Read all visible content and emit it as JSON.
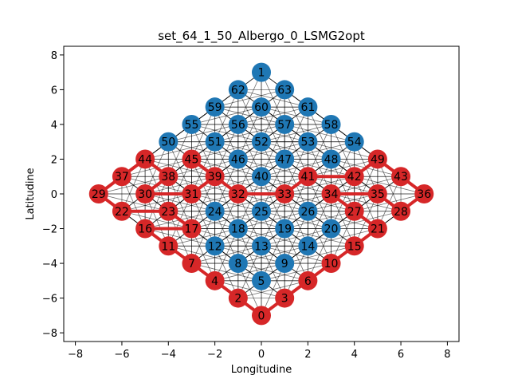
{
  "chart_data": {
    "type": "scatter",
    "title": "set_64_1_50_Albergo_0_LSMG2opt",
    "xlabel": "Longitudine",
    "ylabel": "Latitudine",
    "xlim": [
      -8.5,
      8.5
    ],
    "ylim": [
      -8.5,
      8.5
    ],
    "xticks": [
      -8,
      -6,
      -4,
      -2,
      0,
      2,
      4,
      6,
      8
    ],
    "yticks": [
      -8,
      -6,
      -4,
      -2,
      0,
      2,
      4,
      6,
      8
    ],
    "xtick_labels": [
      "−8",
      "−6",
      "−4",
      "−2",
      "0",
      "2",
      "4",
      "6",
      "8"
    ],
    "ytick_labels": [
      "−8",
      "−6",
      "−4",
      "−2",
      "0",
      "2",
      "4",
      "6",
      "8"
    ],
    "grid": false,
    "colors": {
      "visited": "#d62728",
      "unvisited": "#1f77b4",
      "route": "#d62728",
      "edges": "#000000"
    },
    "nodes": [
      {
        "id": "0",
        "x": 0,
        "y": -7,
        "visited": true
      },
      {
        "id": "1",
        "x": 0,
        "y": 7,
        "visited": false
      },
      {
        "id": "2",
        "x": -1,
        "y": -6,
        "visited": true
      },
      {
        "id": "3",
        "x": 1,
        "y": -6,
        "visited": true
      },
      {
        "id": "4",
        "x": -2,
        "y": -5,
        "visited": true
      },
      {
        "id": "5",
        "x": 0,
        "y": -5,
        "visited": false
      },
      {
        "id": "6",
        "x": 2,
        "y": -5,
        "visited": true
      },
      {
        "id": "7",
        "x": -3,
        "y": -4,
        "visited": true
      },
      {
        "id": "8",
        "x": -1,
        "y": -4,
        "visited": false
      },
      {
        "id": "9",
        "x": 1,
        "y": -4,
        "visited": false
      },
      {
        "id": "10",
        "x": 3,
        "y": -4,
        "visited": true
      },
      {
        "id": "11",
        "x": -4,
        "y": -3,
        "visited": true
      },
      {
        "id": "12",
        "x": -2,
        "y": -3,
        "visited": false
      },
      {
        "id": "13",
        "x": 0,
        "y": -3,
        "visited": false
      },
      {
        "id": "14",
        "x": 2,
        "y": -3,
        "visited": false
      },
      {
        "id": "15",
        "x": 4,
        "y": -3,
        "visited": true
      },
      {
        "id": "16",
        "x": -5,
        "y": -2,
        "visited": true
      },
      {
        "id": "17",
        "x": -3,
        "y": -2,
        "visited": true
      },
      {
        "id": "18",
        "x": -1,
        "y": -2,
        "visited": false
      },
      {
        "id": "19",
        "x": 1,
        "y": -2,
        "visited": false
      },
      {
        "id": "20",
        "x": 3,
        "y": -2,
        "visited": false
      },
      {
        "id": "21",
        "x": 5,
        "y": -2,
        "visited": true
      },
      {
        "id": "22",
        "x": -6,
        "y": -1,
        "visited": true
      },
      {
        "id": "23",
        "x": -4,
        "y": -1,
        "visited": true
      },
      {
        "id": "24",
        "x": -2,
        "y": -1,
        "visited": false
      },
      {
        "id": "25",
        "x": 0,
        "y": -1,
        "visited": false
      },
      {
        "id": "26",
        "x": 2,
        "y": -1,
        "visited": false
      },
      {
        "id": "27",
        "x": 4,
        "y": -1,
        "visited": true
      },
      {
        "id": "28",
        "x": 6,
        "y": -1,
        "visited": true
      },
      {
        "id": "29",
        "x": -7,
        "y": 0,
        "visited": true
      },
      {
        "id": "30",
        "x": -5,
        "y": 0,
        "visited": true
      },
      {
        "id": "31",
        "x": -3,
        "y": 0,
        "visited": true
      },
      {
        "id": "32",
        "x": -1,
        "y": 0,
        "visited": true
      },
      {
        "id": "33",
        "x": 1,
        "y": 0,
        "visited": true
      },
      {
        "id": "34",
        "x": 3,
        "y": 0,
        "visited": true
      },
      {
        "id": "35",
        "x": 5,
        "y": 0,
        "visited": true
      },
      {
        "id": "36",
        "x": 7,
        "y": 0,
        "visited": true
      },
      {
        "id": "37",
        "x": -6,
        "y": 1,
        "visited": true
      },
      {
        "id": "38",
        "x": -4,
        "y": 1,
        "visited": true
      },
      {
        "id": "39",
        "x": -2,
        "y": 1,
        "visited": true
      },
      {
        "id": "40",
        "x": 0,
        "y": 1,
        "visited": false
      },
      {
        "id": "41",
        "x": 2,
        "y": 1,
        "visited": true
      },
      {
        "id": "42",
        "x": 4,
        "y": 1,
        "visited": true
      },
      {
        "id": "43",
        "x": 6,
        "y": 1,
        "visited": true
      },
      {
        "id": "44",
        "x": -5,
        "y": 2,
        "visited": true
      },
      {
        "id": "45",
        "x": -3,
        "y": 2,
        "visited": true
      },
      {
        "id": "46",
        "x": -1,
        "y": 2,
        "visited": false
      },
      {
        "id": "47",
        "x": 1,
        "y": 2,
        "visited": false
      },
      {
        "id": "48",
        "x": 3,
        "y": 2,
        "visited": false
      },
      {
        "id": "49",
        "x": 5,
        "y": 2,
        "visited": true
      },
      {
        "id": "50",
        "x": -4,
        "y": 3,
        "visited": false
      },
      {
        "id": "51",
        "x": -2,
        "y": 3,
        "visited": false
      },
      {
        "id": "52",
        "x": 0,
        "y": 3,
        "visited": false
      },
      {
        "id": "53",
        "x": 2,
        "y": 3,
        "visited": false
      },
      {
        "id": "54",
        "x": 4,
        "y": 3,
        "visited": false
      },
      {
        "id": "55",
        "x": -3,
        "y": 4,
        "visited": false
      },
      {
        "id": "56",
        "x": -1,
        "y": 4,
        "visited": false
      },
      {
        "id": "57",
        "x": 1,
        "y": 4,
        "visited": false
      },
      {
        "id": "58",
        "x": 3,
        "y": 4,
        "visited": false
      },
      {
        "id": "59",
        "x": -2,
        "y": 5,
        "visited": false
      },
      {
        "id": "60",
        "x": 0,
        "y": 5,
        "visited": false
      },
      {
        "id": "61",
        "x": 2,
        "y": 5,
        "visited": false
      },
      {
        "id": "62",
        "x": -1,
        "y": 6,
        "visited": false
      },
      {
        "id": "63",
        "x": 1,
        "y": 6,
        "visited": false
      }
    ],
    "route": [
      "0",
      "2",
      "4",
      "7",
      "11",
      "16",
      "17",
      "23",
      "22",
      "29",
      "37",
      "44",
      "38",
      "30",
      "31",
      "39",
      "45",
      "32",
      "33",
      "41",
      "42",
      "49",
      "43",
      "36",
      "28",
      "35",
      "34",
      "27",
      "21",
      "15",
      "10",
      "6",
      "3",
      "0"
    ]
  }
}
